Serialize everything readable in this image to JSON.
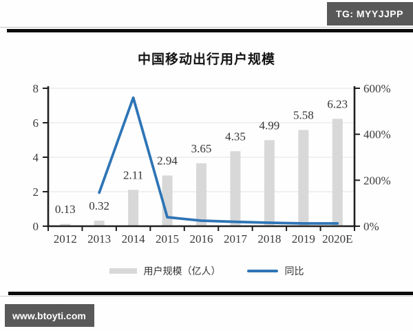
{
  "page": {
    "tg_badge": "TG: MYYJJPP",
    "site_badge": "www.btoyti.com"
  },
  "chart_data": {
    "type": "bar+line combo",
    "title": "中国移动出行用户规模",
    "categories": [
      "2012",
      "2013",
      "2014",
      "2015",
      "2016",
      "2017",
      "2018",
      "2019",
      "2020E"
    ],
    "series": [
      {
        "name": "用户规模（亿人）",
        "type": "bar",
        "axis": "left",
        "color": "#d8d8d8",
        "values": [
          0.13,
          0.32,
          2.11,
          2.94,
          3.65,
          4.35,
          4.99,
          5.58,
          6.23
        ],
        "labels": [
          "0.13",
          "0.32",
          "2.11",
          "2.94",
          "3.65",
          "4.35",
          "4.99",
          "5.58",
          "6.23"
        ]
      },
      {
        "name": "同比",
        "type": "line",
        "axis": "right",
        "unit": "%",
        "color": "#2e75b6",
        "values": [
          null,
          146,
          559,
          39,
          24,
          19,
          15,
          12,
          12
        ]
      }
    ],
    "left_axis": {
      "min": 0,
      "max": 8,
      "ticks": [
        0,
        2,
        4,
        6,
        8
      ]
    },
    "right_axis": {
      "min": 0,
      "max": 600,
      "tick_values": [
        0,
        200,
        400,
        600
      ],
      "tick_labels": [
        "0%",
        "200%",
        "400%",
        "600%"
      ]
    },
    "grid": true,
    "legend_position": "bottom"
  }
}
